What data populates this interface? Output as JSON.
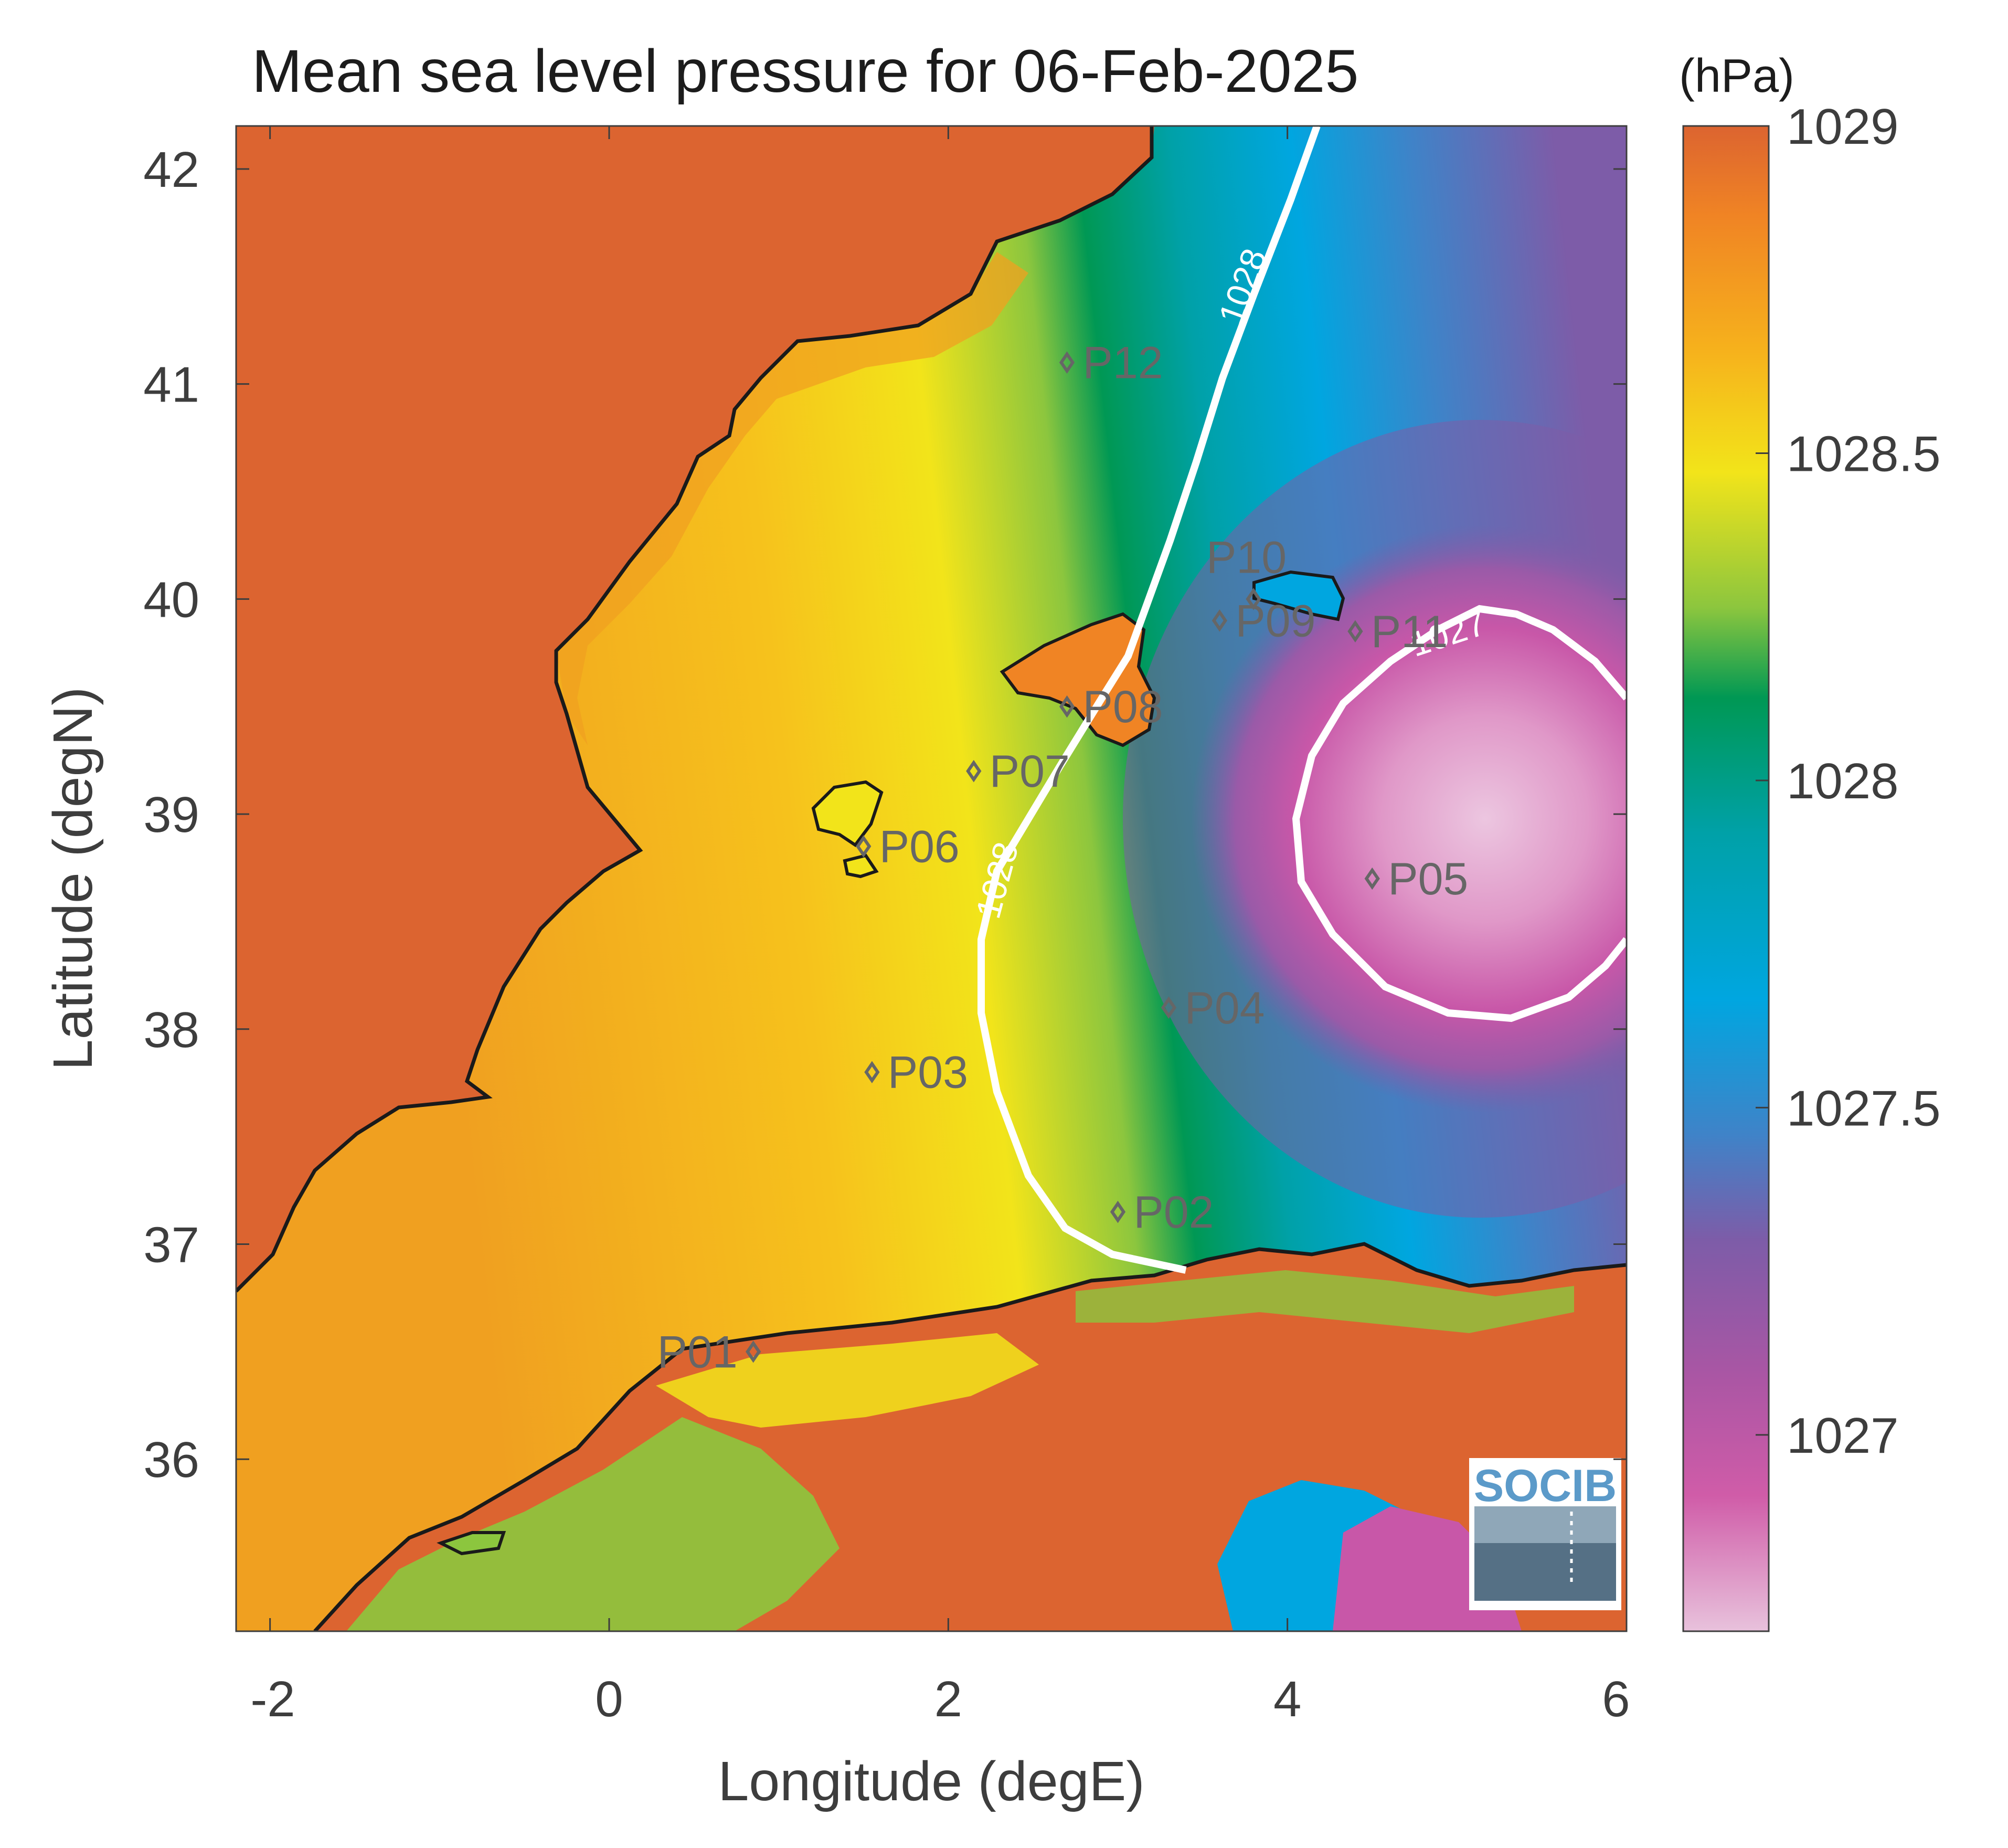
{
  "title": "Mean sea level pressure for 06-Feb-2025",
  "unit_label": "(hPa)",
  "xlabel": "Longitude (degE)",
  "ylabel": "Latitude (degN)",
  "logo_text": "SOCIB",
  "colorbar": {
    "range": [
      1026.7,
      1029.0
    ],
    "ticks": [
      "1029",
      "1028.5",
      "1028",
      "1027.5",
      "1027"
    ],
    "colors": [
      "#dc6430",
      "#f08424",
      "#f6b21c",
      "#f2e41a",
      "#8cc63e",
      "#009854",
      "#00a1a8",
      "#00a6e0",
      "#3f83c8",
      "#7d5ca8",
      "#aa56a4",
      "#d05ca8",
      "#e8c2dc"
    ]
  },
  "chart_data": {
    "type": "heatmap",
    "title": "Mean sea level pressure for 06-Feb-2025",
    "xlabel": "Longitude (degE)",
    "ylabel": "Latitude (degN)",
    "xlim": [
      -2.2,
      6.0
    ],
    "ylim": [
      35.2,
      42.2
    ],
    "x_ticks": [
      -2,
      0,
      2,
      4,
      6
    ],
    "y_ticks": [
      36,
      37,
      38,
      39,
      40,
      41,
      42
    ],
    "x_tick_labels": [
      "-2",
      "0",
      "2",
      "4",
      "6"
    ],
    "y_tick_labels": [
      "36",
      "37",
      "38",
      "39",
      "40",
      "41",
      "42"
    ],
    "contour_levels": [
      {
        "label": "1028",
        "level": 1028
      },
      {
        "label": "1028",
        "level": 1028
      },
      {
        "label": "1027",
        "level": 1027
      }
    ],
    "stations": [
      {
        "name": "P01",
        "lon": 0.85,
        "lat": 36.5
      },
      {
        "name": "P02",
        "lon": 3.0,
        "lat": 37.15
      },
      {
        "name": "P03",
        "lon": 1.55,
        "lat": 37.8
      },
      {
        "name": "P04",
        "lon": 3.3,
        "lat": 38.1
      },
      {
        "name": "P05",
        "lon": 4.5,
        "lat": 38.7
      },
      {
        "name": "P06",
        "lon": 1.5,
        "lat": 38.85
      },
      {
        "name": "P07",
        "lon": 2.15,
        "lat": 39.2
      },
      {
        "name": "P08",
        "lon": 2.7,
        "lat": 39.5
      },
      {
        "name": "P09",
        "lon": 3.6,
        "lat": 39.9
      },
      {
        "name": "P10",
        "lon": 3.8,
        "lat": 40.0
      },
      {
        "name": "P11",
        "lon": 4.4,
        "lat": 39.85
      },
      {
        "name": "P12",
        "lon": 2.7,
        "lat": 41.1
      }
    ]
  }
}
